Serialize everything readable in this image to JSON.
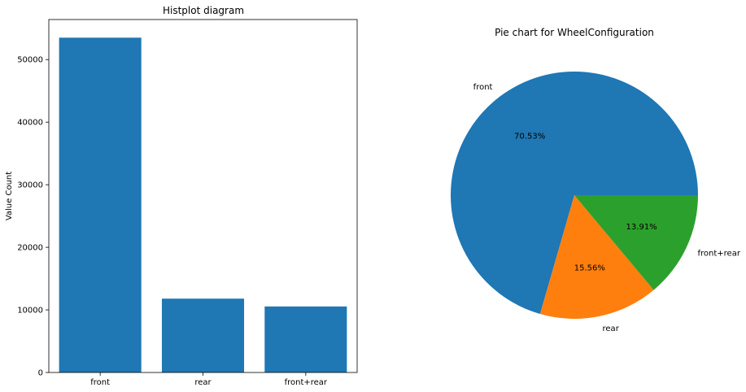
{
  "chart_data": [
    {
      "type": "bar",
      "title": "Histplot diagram",
      "xlabel": "",
      "ylabel": "Value Count",
      "categories": [
        "front",
        "rear",
        "front+rear"
      ],
      "values": [
        53500,
        11800,
        10550
      ],
      "ylim": [
        0,
        56400
      ],
      "yticks": [
        0,
        10000,
        20000,
        30000,
        40000,
        50000
      ],
      "color": "#1f77b4",
      "grid": false
    },
    {
      "type": "pie",
      "title": "Pie chart for WheelConfiguration",
      "labels": [
        "front",
        "rear",
        "front+rear"
      ],
      "values": [
        70.53,
        15.56,
        13.91
      ],
      "pct_labels": [
        "70.53%",
        "15.56%",
        "13.91%"
      ],
      "colors": [
        "#1f77b4",
        "#ff7f0e",
        "#2ca02c"
      ],
      "start_angle": 0,
      "direction": "counterclockwise"
    }
  ]
}
